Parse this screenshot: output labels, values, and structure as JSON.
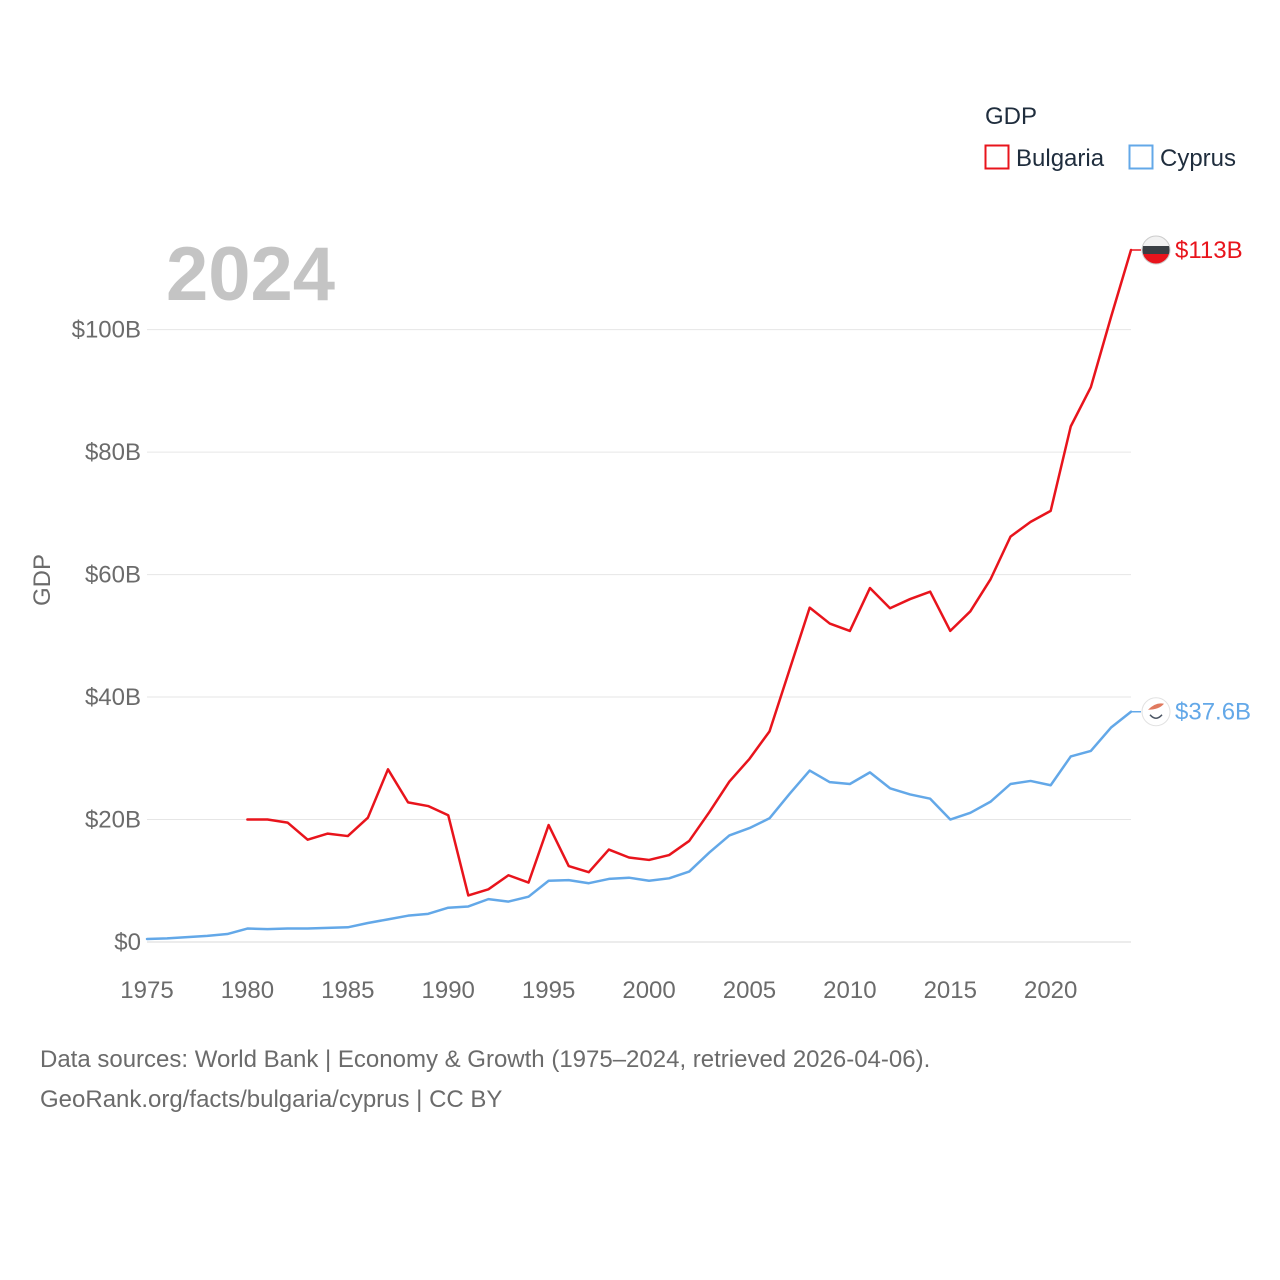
{
  "chart_data": {
    "type": "line",
    "title": "GDP",
    "year_label": "2024",
    "ylabel": "GDP",
    "xlabel": "",
    "xlim": [
      1975,
      2024
    ],
    "ylim": [
      0,
      113
    ],
    "y_ticks": [
      {
        "value": 0,
        "label": "$0"
      },
      {
        "value": 20,
        "label": "$20B"
      },
      {
        "value": 40,
        "label": "$40B"
      },
      {
        "value": 60,
        "label": "$60B"
      },
      {
        "value": 80,
        "label": "$80B"
      },
      {
        "value": 100,
        "label": "$100B"
      }
    ],
    "x_ticks": [
      {
        "value": 1975,
        "label": "1975"
      },
      {
        "value": 1980,
        "label": "1980"
      },
      {
        "value": 1985,
        "label": "1985"
      },
      {
        "value": 1990,
        "label": "1990"
      },
      {
        "value": 1995,
        "label": "1995"
      },
      {
        "value": 2000,
        "label": "2000"
      },
      {
        "value": 2005,
        "label": "2005"
      },
      {
        "value": 2010,
        "label": "2010"
      },
      {
        "value": 2015,
        "label": "2015"
      },
      {
        "value": 2020,
        "label": "2020"
      }
    ],
    "grid": true,
    "legend_position": "top-right",
    "series": [
      {
        "name": "Bulgaria",
        "color": "#e8141c",
        "end_label": "$113B",
        "x": [
          1980,
          1981,
          1982,
          1983,
          1984,
          1985,
          1986,
          1987,
          1988,
          1989,
          1990,
          1991,
          1992,
          1993,
          1994,
          1995,
          1996,
          1997,
          1998,
          1999,
          2000,
          2001,
          2002,
          2003,
          2004,
          2005,
          2006,
          2007,
          2008,
          2009,
          2010,
          2011,
          2012,
          2013,
          2014,
          2015,
          2016,
          2017,
          2018,
          2019,
          2020,
          2021,
          2022,
          2023,
          2024
        ],
        "values": [
          20.0,
          20.0,
          19.5,
          16.7,
          17.7,
          17.3,
          20.3,
          28.2,
          22.8,
          22.2,
          20.7,
          7.6,
          8.6,
          10.9,
          9.7,
          19.1,
          12.4,
          11.4,
          15.1,
          13.8,
          13.4,
          14.2,
          16.5,
          21.2,
          26.2,
          29.9,
          34.4,
          44.5,
          54.6,
          52.0,
          50.8,
          57.8,
          54.5,
          56.0,
          57.2,
          50.8,
          54.0,
          59.2,
          66.2,
          68.6,
          70.4,
          84.2,
          90.6,
          102.0,
          113.0
        ]
      },
      {
        "name": "Cyprus",
        "color": "#63a8e8",
        "end_label": "$37.6B",
        "x": [
          1975,
          1976,
          1977,
          1978,
          1979,
          1980,
          1981,
          1982,
          1983,
          1984,
          1985,
          1986,
          1987,
          1988,
          1989,
          1990,
          1991,
          1992,
          1993,
          1994,
          1995,
          1996,
          1997,
          1998,
          1999,
          2000,
          2001,
          2002,
          2003,
          2004,
          2005,
          2006,
          2007,
          2008,
          2009,
          2010,
          2011,
          2012,
          2013,
          2014,
          2015,
          2016,
          2017,
          2018,
          2019,
          2020,
          2021,
          2022,
          2023,
          2024
        ],
        "values": [
          0.5,
          0.6,
          0.8,
          1.0,
          1.3,
          2.2,
          2.1,
          2.2,
          2.2,
          2.3,
          2.4,
          3.1,
          3.7,
          4.3,
          4.6,
          5.6,
          5.8,
          7.0,
          6.6,
          7.4,
          10.0,
          10.1,
          9.6,
          10.3,
          10.5,
          10.0,
          10.4,
          11.5,
          14.6,
          17.4,
          18.6,
          20.2,
          24.2,
          28.0,
          26.1,
          25.8,
          27.7,
          25.1,
          24.1,
          23.4,
          20.0,
          21.1,
          22.9,
          25.8,
          26.3,
          25.6,
          30.3,
          31.2,
          35.0,
          37.6
        ]
      }
    ]
  },
  "footer": {
    "line1": "Data sources: World Bank | Economy & Growth (1975–2024, retrieved 2026-04-06).",
    "line2": "GeoRank.org/facts/bulgaria/cyprus | CC BY"
  }
}
